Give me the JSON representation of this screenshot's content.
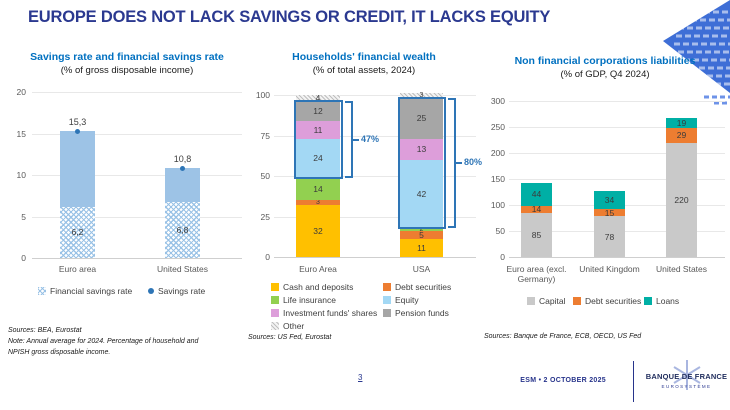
{
  "slide": {
    "title": "EUROPE DOES NOT LACK SAVINGS OR CREDIT, IT LACKS EQUITY",
    "page_number": "3",
    "event_date": "ESM • 2 OCTOBER 2025",
    "logo_name": "BANQUE DE FRANCE",
    "logo_subtitle": "EUROSYSTÈME"
  },
  "colors": {
    "main_title": "#2B3990",
    "chart_title": "#0070C0",
    "accent": "#2E75B6",
    "decoration_blue": "#3E6ED6"
  },
  "chart_data": [
    {
      "id": "savings",
      "type": "bar",
      "title": "Savings rate and financial savings rate",
      "subtitle": "(% of gross disposable income)",
      "categories": [
        "Euro area",
        "United States"
      ],
      "series": [
        {
          "name": "Financial savings rate",
          "style": "hatched-blue",
          "values": [
            6.2,
            6.8
          ],
          "labels": [
            "6,2",
            "6,8"
          ]
        },
        {
          "name": "Savings rate",
          "style": "solid-with-dot",
          "color": "#9DC3E6",
          "dot_color": "#2E75B6",
          "values": [
            15.3,
            10.8
          ],
          "labels": [
            "15,3",
            "10,8"
          ]
        }
      ],
      "ylim": [
        0,
        20
      ],
      "yticks": [
        0,
        5,
        10,
        15,
        20
      ],
      "grid": true,
      "legend_position": "bottom",
      "sources": "Sources: BEA, Eurostat",
      "note": "Note: Annual average for 2024. Percentage of household and NPISH gross disposable income."
    },
    {
      "id": "wealth",
      "type": "stacked-bar",
      "title": "Households' financial wealth",
      "subtitle": "(% of total assets, 2024)",
      "categories": [
        "Euro Area",
        "USA"
      ],
      "series": [
        {
          "name": "Cash and deposits",
          "color": "#FFC000",
          "values": [
            32,
            11
          ]
        },
        {
          "name": "Debt securities",
          "color": "#ED7D31",
          "values": [
            3,
            5
          ]
        },
        {
          "name": "Life insurance",
          "color": "#92D050",
          "values": [
            14,
            2
          ]
        },
        {
          "name": "Equity",
          "color": "#A3D8F4",
          "values": [
            24,
            42
          ]
        },
        {
          "name": "Investment funds' shares",
          "color": "#DD9EDA",
          "values": [
            11,
            13
          ]
        },
        {
          "name": "Pension funds",
          "color": "#A6A6A6",
          "values": [
            12,
            25
          ]
        },
        {
          "name": "Other",
          "color": "hatch-gray",
          "values": [
            4,
            3
          ]
        }
      ],
      "highlights": [
        {
          "bar": 0,
          "from_series": "Equity",
          "to_series": "Pension funds",
          "label": "47%"
        },
        {
          "bar": 1,
          "from_series": "Equity",
          "to_series": "Pension funds",
          "label": "80%"
        }
      ],
      "ylim": [
        0,
        100
      ],
      "yticks": [
        0,
        25,
        50,
        75,
        100
      ],
      "grid": true,
      "legend_position": "bottom-two-columns",
      "sources": "Sources: US Fed, Eurostat"
    },
    {
      "id": "nfc",
      "type": "stacked-bar",
      "title": "Non financial corporations liabilities",
      "subtitle": "(% of GDP, Q4 2024)",
      "categories": [
        "Euro area (excl. Germany)",
        "United Kingdom",
        "United States"
      ],
      "series": [
        {
          "name": "Capital",
          "color": "#C9C9C9",
          "values": [
            85,
            78,
            220
          ]
        },
        {
          "name": "Debt securities",
          "color": "#ED7D31",
          "values": [
            14,
            15,
            29
          ]
        },
        {
          "name": "Loans",
          "color": "#00AFA5",
          "values": [
            44,
            34,
            19
          ]
        }
      ],
      "ylim": [
        0,
        300
      ],
      "yticks": [
        0,
        50,
        100,
        150,
        200,
        250,
        300
      ],
      "grid": true,
      "legend_position": "bottom",
      "sources": "Sources: Banque de France, ECB, OECD, US Fed"
    }
  ]
}
